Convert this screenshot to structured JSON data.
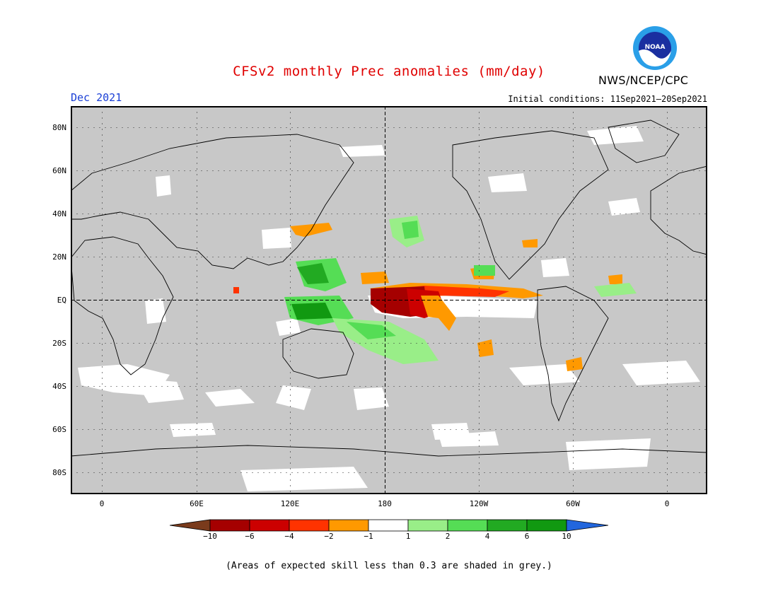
{
  "header": {
    "title": "CFSv2 monthly Prec anomalies (mm/day)",
    "month": "Dec 2021",
    "initial_conditions": "Initial conditions: 11Sep2021–20Sep2021",
    "agency": "NWS/NCEP/CPC",
    "logo_text": "NOAA"
  },
  "map": {
    "projection": "equirectangular, Pacific-centered (180 in middle)",
    "lat_labels": [
      "80N",
      "60N",
      "40N",
      "20N",
      "EQ",
      "20S",
      "40S",
      "60S",
      "80S"
    ],
    "lon_labels": [
      "0",
      "60E",
      "120E",
      "180",
      "120W",
      "60W",
      "0"
    ],
    "background_grey_meaning": "skill < 0.3",
    "reference_lines": [
      "equator",
      "dateline"
    ]
  },
  "colorbar": {
    "ticks": [
      "−10",
      "−6",
      "−4",
      "−2",
      "−1",
      "1",
      "2",
      "4",
      "6",
      "10"
    ],
    "colors": [
      "#7a3b1c",
      "#a50000",
      "#cc0000",
      "#ff3300",
      "#ff9900",
      "#ffffff",
      "#99ee88",
      "#55dd55",
      "#22aa22",
      "#119911",
      "#2266dd"
    ]
  },
  "footnote": "(Areas of expected skill less than 0.3 are shaded in grey.)"
}
